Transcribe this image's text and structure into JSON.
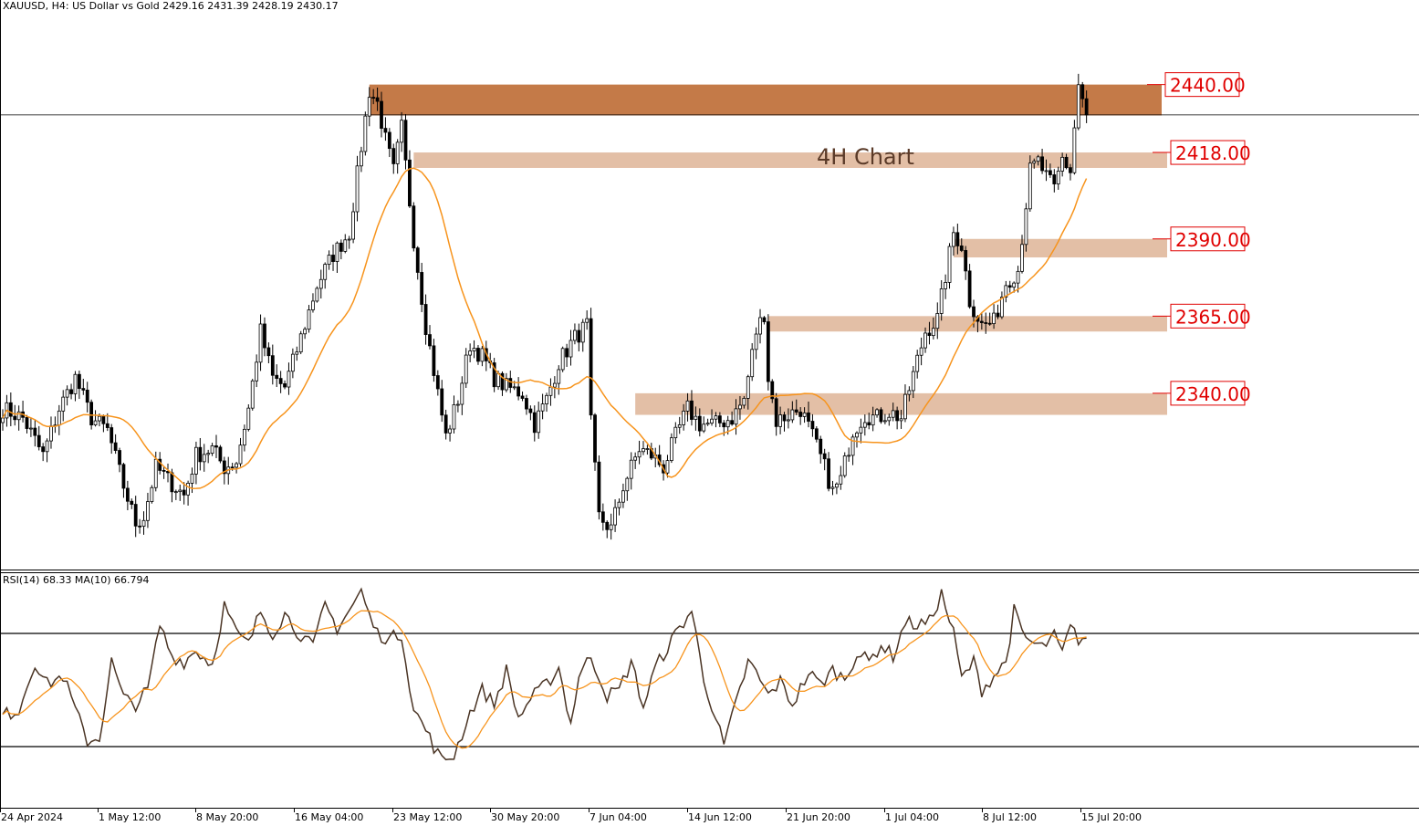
{
  "header": {
    "main_info": "XAUUSD, H4:  US Dollar vs Gold  2429.16 2431.39 2428.19 2430.17",
    "rsi_info": "RSI(14) 68.33 MA(10) 66.794"
  },
  "colors": {
    "candles": "#000000",
    "ma_line": "#f7941d",
    "zone_dark": "#c47a48",
    "zone_light": "#e3bfa6",
    "level_label": "#e00000",
    "rsi_line": "#4a3424"
  },
  "chart_data": [
    {
      "type": "candlestick",
      "title": "4H Chart",
      "symbol": "XAUUSD",
      "timeframe": "H4",
      "ylim": [
        2290,
        2460
      ],
      "last_price": 2430.17,
      "x_tick_labels": [
        "24 Apr 2024",
        "1 May 12:00",
        "8 May 20:00",
        "16 May 04:00",
        "23 May 12:00",
        "30 May 20:00",
        "7 Jun 04:00",
        "14 Jun 12:00",
        "21 Jun 20:00",
        "1 Jul 04:00",
        "8 Jul 12:00",
        "15 Jul 20:00"
      ],
      "anchors_close": [
        [
          0,
          2335
        ],
        [
          5,
          2332
        ],
        [
          10,
          2320
        ],
        [
          14,
          2335
        ],
        [
          18,
          2345
        ],
        [
          22,
          2332
        ],
        [
          26,
          2328
        ],
        [
          30,
          2310
        ],
        [
          33,
          2298
        ],
        [
          35,
          2300
        ],
        [
          38,
          2316
        ],
        [
          41,
          2312
        ],
        [
          45,
          2307
        ],
        [
          48,
          2320
        ],
        [
          52,
          2322
        ],
        [
          55,
          2316
        ],
        [
          58,
          2318
        ],
        [
          61,
          2335
        ],
        [
          64,
          2360
        ],
        [
          67,
          2345
        ],
        [
          70,
          2342
        ],
        [
          74,
          2358
        ],
        [
          78,
          2375
        ],
        [
          82,
          2385
        ],
        [
          86,
          2392
        ],
        [
          89,
          2420
        ],
        [
          91,
          2438
        ],
        [
          93,
          2434
        ],
        [
          95,
          2422
        ],
        [
          97,
          2412
        ],
        [
          99,
          2426
        ],
        [
          102,
          2390
        ],
        [
          105,
          2362
        ],
        [
          108,
          2340
        ],
        [
          110,
          2326
        ],
        [
          113,
          2338
        ],
        [
          116,
          2356
        ],
        [
          119,
          2352
        ],
        [
          122,
          2345
        ],
        [
          125,
          2342
        ],
        [
          129,
          2340
        ],
        [
          132,
          2330
        ],
        [
          135,
          2338
        ],
        [
          138,
          2350
        ],
        [
          142,
          2358
        ],
        [
          145,
          2362
        ],
        [
          146,
          2330
        ],
        [
          148,
          2300
        ],
        [
          151,
          2296
        ],
        [
          154,
          2310
        ],
        [
          158,
          2322
        ],
        [
          161,
          2320
        ],
        [
          164,
          2316
        ],
        [
          167,
          2326
        ],
        [
          170,
          2335
        ],
        [
          173,
          2330
        ],
        [
          177,
          2330
        ],
        [
          181,
          2332
        ],
        [
          184,
          2338
        ],
        [
          187,
          2360
        ],
        [
          189,
          2366
        ],
        [
          190,
          2345
        ],
        [
          192,
          2331
        ],
        [
          195,
          2333
        ],
        [
          198,
          2335
        ],
        [
          201,
          2326
        ],
        [
          204,
          2316
        ],
        [
          206,
          2308
        ],
        [
          208,
          2312
        ],
        [
          211,
          2328
        ],
        [
          214,
          2333
        ],
        [
          217,
          2332
        ],
        [
          220,
          2334
        ],
        [
          223,
          2332
        ],
        [
          226,
          2346
        ],
        [
          229,
          2360
        ],
        [
          232,
          2364
        ],
        [
          234,
          2378
        ],
        [
          236,
          2392
        ],
        [
          238,
          2388
        ],
        [
          240,
          2370
        ],
        [
          243,
          2362
        ],
        [
          246,
          2363
        ],
        [
          249,
          2376
        ],
        [
          252,
          2380
        ],
        [
          255,
          2412
        ],
        [
          257,
          2415
        ],
        [
          259,
          2410
        ],
        [
          261,
          2406
        ],
        [
          263,
          2416
        ],
        [
          265,
          2412
        ],
        [
          267,
          2440
        ],
        [
          269,
          2430
        ]
      ],
      "ma_period": 20,
      "levels": [
        {
          "label": "2440.00",
          "value": 2440,
          "zone_low": 2430,
          "zone_high": 2440,
          "start_index": 91,
          "style": "dark"
        },
        {
          "label": "2418.00",
          "value": 2418,
          "zone_low": 2413,
          "zone_high": 2418,
          "start_index": 102,
          "style": "light"
        },
        {
          "label": "2390.00",
          "value": 2390,
          "zone_low": 2384,
          "zone_high": 2390,
          "start_index": 236,
          "style": "light"
        },
        {
          "label": "2365.00",
          "value": 2365,
          "zone_low": 2360,
          "zone_high": 2365,
          "start_index": 190,
          "style": "light"
        },
        {
          "label": "2340.00",
          "value": 2340,
          "zone_low": 2333,
          "zone_high": 2340,
          "start_index": 157,
          "style": "light"
        }
      ]
    },
    {
      "type": "line",
      "indicator": "RSI",
      "period": 14,
      "ma_period": 10,
      "last_rsi": 68.33,
      "last_ma": 66.794,
      "ylim": [
        10,
        90
      ],
      "levels": [
        70,
        30
      ],
      "anchors": [
        [
          0,
          41
        ],
        [
          4,
          43
        ],
        [
          8,
          60
        ],
        [
          11,
          52
        ],
        [
          15,
          55
        ],
        [
          18,
          43
        ],
        [
          21,
          32
        ],
        [
          24,
          33
        ],
        [
          27,
          60
        ],
        [
          30,
          47
        ],
        [
          33,
          45
        ],
        [
          36,
          50
        ],
        [
          39,
          73
        ],
        [
          42,
          62
        ],
        [
          45,
          60
        ],
        [
          48,
          64
        ],
        [
          52,
          59
        ],
        [
          55,
          80
        ],
        [
          58,
          70
        ],
        [
          61,
          66
        ],
        [
          64,
          78
        ],
        [
          67,
          70
        ],
        [
          70,
          77
        ],
        [
          73,
          71
        ],
        [
          77,
          65
        ],
        [
          80,
          80
        ],
        [
          83,
          72
        ],
        [
          86,
          78
        ],
        [
          89,
          85
        ],
        [
          91,
          76
        ],
        [
          93,
          70
        ],
        [
          96,
          68
        ],
        [
          99,
          70
        ],
        [
          102,
          43
        ],
        [
          105,
          36
        ],
        [
          107,
          30
        ],
        [
          109,
          25
        ],
        [
          112,
          27
        ],
        [
          116,
          42
        ],
        [
          119,
          50
        ],
        [
          122,
          45
        ],
        [
          125,
          57
        ],
        [
          128,
          40
        ],
        [
          131,
          47
        ],
        [
          135,
          52
        ],
        [
          138,
          58
        ],
        [
          141,
          38
        ],
        [
          143,
          55
        ],
        [
          146,
          62
        ],
        [
          150,
          48
        ],
        [
          153,
          50
        ],
        [
          156,
          60
        ],
        [
          159,
          44
        ],
        [
          162,
          58
        ],
        [
          165,
          65
        ],
        [
          168,
          72
        ],
        [
          171,
          78
        ],
        [
          174,
          54
        ],
        [
          177,
          40
        ],
        [
          179,
          30
        ],
        [
          182,
          45
        ],
        [
          185,
          60
        ],
        [
          187,
          56
        ],
        [
          190,
          48
        ],
        [
          193,
          53
        ],
        [
          196,
          45
        ],
        [
          200,
          56
        ],
        [
          203,
          52
        ],
        [
          206,
          57
        ],
        [
          209,
          54
        ],
        [
          212,
          63
        ],
        [
          215,
          60
        ],
        [
          218,
          66
        ],
        [
          221,
          62
        ],
        [
          224,
          74
        ],
        [
          227,
          73
        ],
        [
          230,
          74
        ],
        [
          233,
          84
        ],
        [
          236,
          70
        ],
        [
          238,
          54
        ],
        [
          241,
          60
        ],
        [
          243,
          50
        ],
        [
          246,
          55
        ],
        [
          249,
          60
        ],
        [
          251,
          78
        ],
        [
          253,
          70
        ],
        [
          255,
          67
        ],
        [
          258,
          65
        ],
        [
          261,
          69
        ],
        [
          263,
          63
        ],
        [
          265,
          72
        ],
        [
          267,
          68
        ],
        [
          269,
          68
        ]
      ]
    }
  ]
}
